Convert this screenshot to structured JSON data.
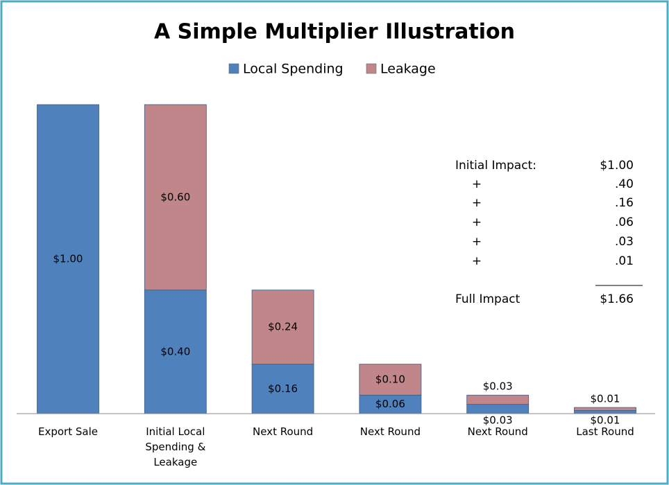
{
  "chart_data": {
    "type": "stacked_bar",
    "title": "A Simple Multiplier Illustration",
    "categories": [
      "Export Sale",
      "Initial Local Spending & Leakage",
      "Next Round",
      "Next Round",
      "Next Round",
      "Last Round"
    ],
    "series": [
      {
        "name": "Local Spending",
        "color": "#4f81bd",
        "values": [
          1.0,
          0.4,
          0.16,
          0.06,
          0.03,
          0.01
        ],
        "value_labels": [
          "$1.00",
          "$0.40",
          "$0.16",
          "$0.06",
          "$0.03",
          "$0.01"
        ]
      },
      {
        "name": "Leakage",
        "color": "#c0868a",
        "values": [
          null,
          0.6,
          0.24,
          0.1,
          0.03,
          0.01
        ],
        "value_labels": [
          null,
          "$0.60",
          "$0.24",
          "$0.10",
          "$0.03",
          "$0.01"
        ]
      }
    ],
    "ylim": [
      0,
      1
    ],
    "legend": "top",
    "annotations": [
      [
        "Initial Impact:",
        "$1.00"
      ],
      [
        "+",
        ".40"
      ],
      [
        "+",
        ".16"
      ],
      [
        "+",
        ".06"
      ],
      [
        "+",
        ".03"
      ],
      [
        "+",
        ".01"
      ],
      [
        "Full Impact",
        "$1.66"
      ]
    ]
  }
}
